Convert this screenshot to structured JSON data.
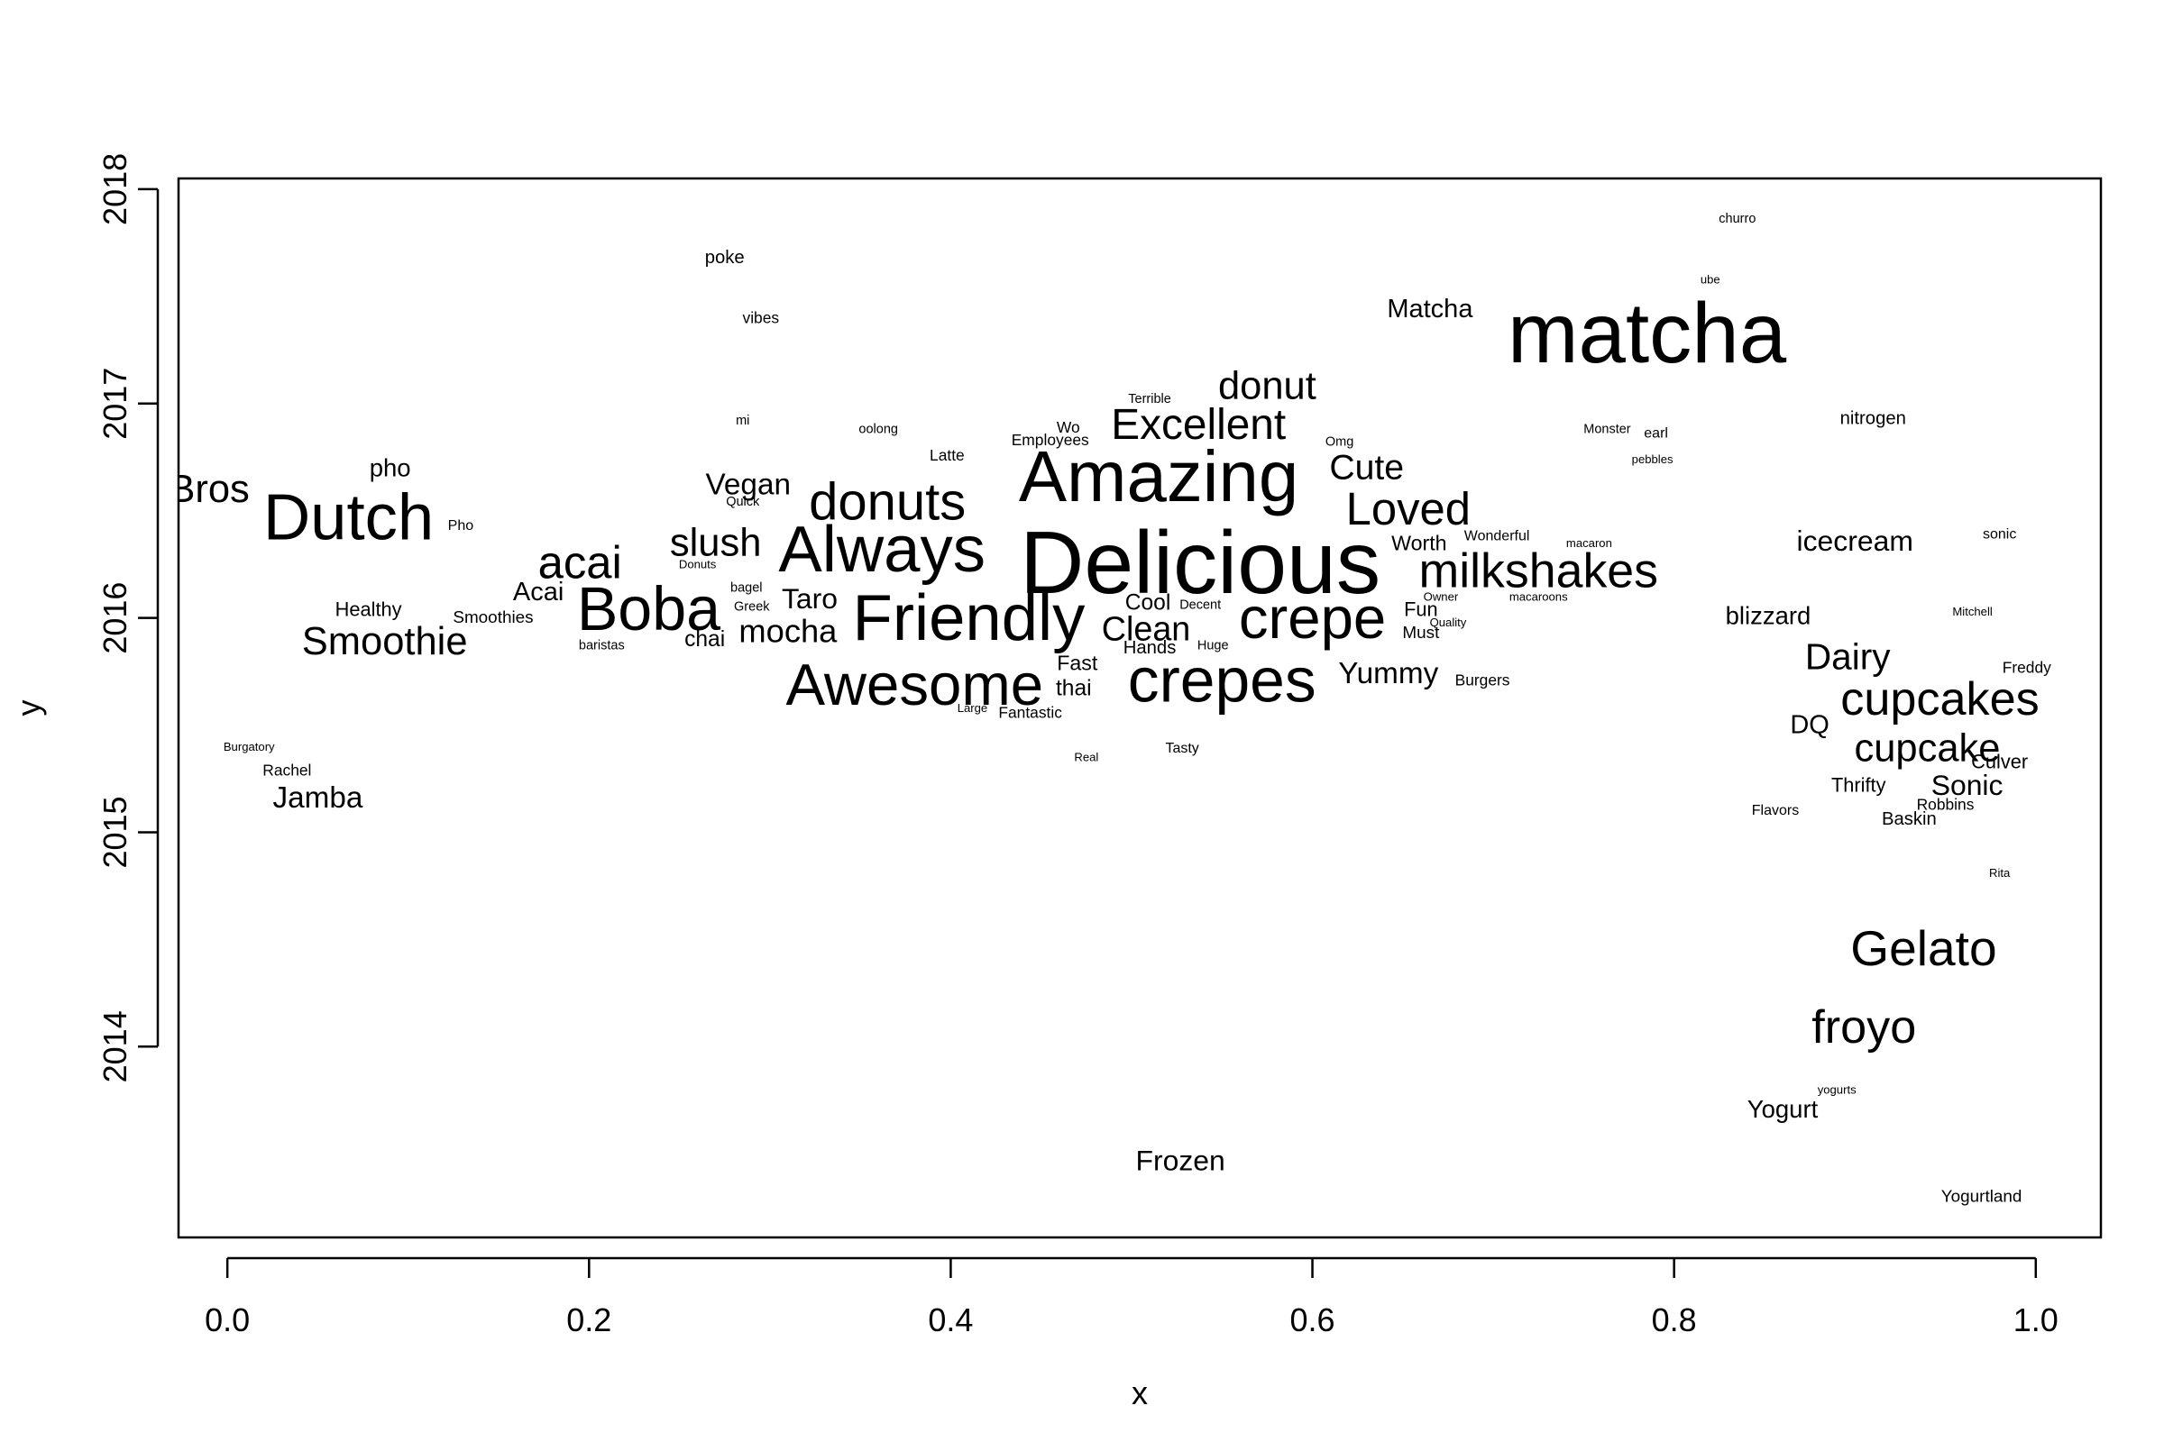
{
  "chart_data": {
    "type": "scatter",
    "title": "",
    "xlabel": "x",
    "ylabel": "y",
    "xlim": [
      -0.027,
      1.036
    ],
    "ylim": [
      2013.11,
      2018.05
    ],
    "x_ticks": [
      0.0,
      0.2,
      0.4,
      0.6,
      0.8,
      1.0
    ],
    "x_tick_labels": [
      "0.0",
      "0.2",
      "0.4",
      "0.6",
      "0.8",
      "1.0"
    ],
    "y_ticks": [
      2014,
      2015,
      2016,
      2017,
      2018
    ],
    "y_tick_labels": [
      "2014",
      "2015",
      "2016",
      "2017",
      "2018"
    ],
    "grid": false,
    "legend": "none",
    "colors": {
      "text": "#000000",
      "axis": "#000000",
      "background": "#ffffff"
    },
    "words": [
      {
        "label": "churro",
        "x": 0.835,
        "y": 2017.86,
        "weight": 1.0
      },
      {
        "label": "poke",
        "x": 0.275,
        "y": 2017.68,
        "weight": 1.4
      },
      {
        "label": "vibes",
        "x": 0.295,
        "y": 2017.4,
        "weight": 1.2
      },
      {
        "label": "ube",
        "x": 0.82,
        "y": 2017.58,
        "weight": 0.9
      },
      {
        "label": "Matcha",
        "x": 0.665,
        "y": 2017.44,
        "weight": 2.0
      },
      {
        "label": "matcha",
        "x": 0.785,
        "y": 2017.33,
        "weight": 6.5
      },
      {
        "label": "donut",
        "x": 0.575,
        "y": 2017.08,
        "weight": 3.0
      },
      {
        "label": "Terrible",
        "x": 0.51,
        "y": 2017.02,
        "weight": 1.0
      },
      {
        "label": "Excellent",
        "x": 0.537,
        "y": 2016.9,
        "weight": 3.3
      },
      {
        "label": "mi",
        "x": 0.285,
        "y": 2016.92,
        "weight": 1.0
      },
      {
        "label": "oolong",
        "x": 0.36,
        "y": 2016.88,
        "weight": 1.0
      },
      {
        "label": "nitrogen",
        "x": 0.91,
        "y": 2016.93,
        "weight": 1.4
      },
      {
        "label": "Monster",
        "x": 0.763,
        "y": 2016.88,
        "weight": 1.0
      },
      {
        "label": "earl",
        "x": 0.79,
        "y": 2016.86,
        "weight": 1.1
      },
      {
        "label": "Wo",
        "x": 0.465,
        "y": 2016.89,
        "weight": 1.2
      },
      {
        "label": "Employees",
        "x": 0.455,
        "y": 2016.83,
        "weight": 1.2
      },
      {
        "label": "Omg",
        "x": 0.615,
        "y": 2016.82,
        "weight": 1.0
      },
      {
        "label": "Latte",
        "x": 0.398,
        "y": 2016.76,
        "weight": 1.2
      },
      {
        "label": "pebbles",
        "x": 0.788,
        "y": 2016.74,
        "weight": 0.9
      },
      {
        "label": "Cute",
        "x": 0.63,
        "y": 2016.7,
        "weight": 2.7
      },
      {
        "label": "Amazing",
        "x": 0.515,
        "y": 2016.66,
        "weight": 5.5
      },
      {
        "label": "pho",
        "x": 0.09,
        "y": 2016.7,
        "weight": 1.9
      },
      {
        "label": "Bros",
        "x": -0.01,
        "y": 2016.6,
        "weight": 3.0
      },
      {
        "label": "Vegan",
        "x": 0.288,
        "y": 2016.62,
        "weight": 2.3
      },
      {
        "label": "Dutch",
        "x": 0.067,
        "y": 2016.47,
        "weight": 5.0
      },
      {
        "label": "donuts",
        "x": 0.365,
        "y": 2016.54,
        "weight": 4.0
      },
      {
        "label": "Quick",
        "x": 0.285,
        "y": 2016.54,
        "weight": 1.0
      },
      {
        "label": "Loved",
        "x": 0.653,
        "y": 2016.51,
        "weight": 3.5
      },
      {
        "label": "Pho",
        "x": 0.129,
        "y": 2016.43,
        "weight": 1.1
      },
      {
        "label": "sonic",
        "x": 0.98,
        "y": 2016.39,
        "weight": 1.1
      },
      {
        "label": "Wonderful",
        "x": 0.702,
        "y": 2016.38,
        "weight": 1.1
      },
      {
        "label": "macaron",
        "x": 0.753,
        "y": 2016.35,
        "weight": 0.9
      },
      {
        "label": "icecream",
        "x": 0.9,
        "y": 2016.36,
        "weight": 2.2
      },
      {
        "label": "Worth",
        "x": 0.659,
        "y": 2016.35,
        "weight": 1.6
      },
      {
        "label": "Always",
        "x": 0.362,
        "y": 2016.32,
        "weight": 5.0
      },
      {
        "label": "slush",
        "x": 0.27,
        "y": 2016.35,
        "weight": 3.0
      },
      {
        "label": "acai",
        "x": 0.195,
        "y": 2016.26,
        "weight": 3.5
      },
      {
        "label": "Delicious",
        "x": 0.538,
        "y": 2016.26,
        "weight": 6.8
      },
      {
        "label": "Donuts",
        "x": 0.26,
        "y": 2016.25,
        "weight": 0.9
      },
      {
        "label": "milkshakes",
        "x": 0.725,
        "y": 2016.22,
        "weight": 3.7
      },
      {
        "label": "bagel",
        "x": 0.287,
        "y": 2016.14,
        "weight": 1.0
      },
      {
        "label": "macaroons",
        "x": 0.725,
        "y": 2016.1,
        "weight": 0.9
      },
      {
        "label": "Owner",
        "x": 0.671,
        "y": 2016.1,
        "weight": 0.9
      },
      {
        "label": "Acai",
        "x": 0.172,
        "y": 2016.12,
        "weight": 2.0
      },
      {
        "label": "Taro",
        "x": 0.322,
        "y": 2016.09,
        "weight": 2.2
      },
      {
        "label": "Boba",
        "x": 0.233,
        "y": 2016.04,
        "weight": 4.7
      },
      {
        "label": "Cool",
        "x": 0.509,
        "y": 2016.07,
        "weight": 1.7
      },
      {
        "label": "Decent",
        "x": 0.538,
        "y": 2016.06,
        "weight": 1.0
      },
      {
        "label": "Greek",
        "x": 0.29,
        "y": 2016.05,
        "weight": 1.0
      },
      {
        "label": "Mitchell",
        "x": 0.965,
        "y": 2016.03,
        "weight": 0.9
      },
      {
        "label": "Friendly",
        "x": 0.41,
        "y": 2016.0,
        "weight": 5.0
      },
      {
        "label": "Fun",
        "x": 0.66,
        "y": 2016.04,
        "weight": 1.5
      },
      {
        "label": "blizzard",
        "x": 0.852,
        "y": 2016.01,
        "weight": 1.9
      },
      {
        "label": "crepe",
        "x": 0.6,
        "y": 2016.0,
        "weight": 4.5
      },
      {
        "label": "Healthy",
        "x": 0.078,
        "y": 2016.04,
        "weight": 1.5
      },
      {
        "label": "Smoothies",
        "x": 0.147,
        "y": 2016.0,
        "weight": 1.3
      },
      {
        "label": "Quality",
        "x": 0.675,
        "y": 2015.98,
        "weight": 0.9
      },
      {
        "label": "mocha",
        "x": 0.31,
        "y": 2015.94,
        "weight": 2.5
      },
      {
        "label": "Clean",
        "x": 0.508,
        "y": 2015.95,
        "weight": 2.6
      },
      {
        "label": "Must",
        "x": 0.66,
        "y": 2015.93,
        "weight": 1.3
      },
      {
        "label": "Smoothie",
        "x": 0.087,
        "y": 2015.89,
        "weight": 3.0
      },
      {
        "label": "chai",
        "x": 0.264,
        "y": 2015.9,
        "weight": 1.7
      },
      {
        "label": "baristas",
        "x": 0.207,
        "y": 2015.87,
        "weight": 1.0
      },
      {
        "label": "Huge",
        "x": 0.545,
        "y": 2015.87,
        "weight": 1.0
      },
      {
        "label": "Hands",
        "x": 0.51,
        "y": 2015.86,
        "weight": 1.4
      },
      {
        "label": "Dairy",
        "x": 0.896,
        "y": 2015.82,
        "weight": 2.8
      },
      {
        "label": "Fast",
        "x": 0.47,
        "y": 2015.79,
        "weight": 1.6
      },
      {
        "label": "Freddy",
        "x": 0.995,
        "y": 2015.77,
        "weight": 1.2
      },
      {
        "label": "Yummy",
        "x": 0.642,
        "y": 2015.74,
        "weight": 2.3
      },
      {
        "label": "crepes",
        "x": 0.55,
        "y": 2015.71,
        "weight": 4.8
      },
      {
        "label": "Awesome",
        "x": 0.38,
        "y": 2015.69,
        "weight": 4.5
      },
      {
        "label": "Burgers",
        "x": 0.694,
        "y": 2015.71,
        "weight": 1.2
      },
      {
        "label": "thai",
        "x": 0.468,
        "y": 2015.67,
        "weight": 1.7
      },
      {
        "label": "cupcakes",
        "x": 0.947,
        "y": 2015.62,
        "weight": 3.6
      },
      {
        "label": "Large",
        "x": 0.412,
        "y": 2015.58,
        "weight": 0.9
      },
      {
        "label": "Fantastic",
        "x": 0.444,
        "y": 2015.56,
        "weight": 1.2
      },
      {
        "label": "DQ",
        "x": 0.875,
        "y": 2015.5,
        "weight": 2.0
      },
      {
        "label": "Burgatory",
        "x": 0.012,
        "y": 2015.4,
        "weight": 0.9
      },
      {
        "label": "Tasty",
        "x": 0.528,
        "y": 2015.39,
        "weight": 1.1
      },
      {
        "label": "cupcake",
        "x": 0.94,
        "y": 2015.39,
        "weight": 3.0
      },
      {
        "label": "Real",
        "x": 0.475,
        "y": 2015.35,
        "weight": 0.9
      },
      {
        "label": "Culver",
        "x": 0.98,
        "y": 2015.33,
        "weight": 1.5
      },
      {
        "label": "Rachel",
        "x": 0.033,
        "y": 2015.29,
        "weight": 1.2
      },
      {
        "label": "Thrifty",
        "x": 0.902,
        "y": 2015.22,
        "weight": 1.5
      },
      {
        "label": "Sonic",
        "x": 0.962,
        "y": 2015.22,
        "weight": 2.2
      },
      {
        "label": "Jamba",
        "x": 0.05,
        "y": 2015.16,
        "weight": 2.3
      },
      {
        "label": "Robbins",
        "x": 0.95,
        "y": 2015.13,
        "weight": 1.2
      },
      {
        "label": "Flavors",
        "x": 0.856,
        "y": 2015.1,
        "weight": 1.1
      },
      {
        "label": "Baskin",
        "x": 0.93,
        "y": 2015.06,
        "weight": 1.4
      },
      {
        "label": "Rita",
        "x": 0.98,
        "y": 2014.81,
        "weight": 0.9
      },
      {
        "label": "Gelato",
        "x": 0.938,
        "y": 2014.46,
        "weight": 3.8
      },
      {
        "label": "froyo",
        "x": 0.905,
        "y": 2014.09,
        "weight": 3.6
      },
      {
        "label": "yogurts",
        "x": 0.89,
        "y": 2013.8,
        "weight": 0.9
      },
      {
        "label": "Yogurt",
        "x": 0.86,
        "y": 2013.71,
        "weight": 1.9
      },
      {
        "label": "Frozen",
        "x": 0.527,
        "y": 2013.47,
        "weight": 2.2
      },
      {
        "label": "Yogurtland",
        "x": 0.97,
        "y": 2013.3,
        "weight": 1.3
      }
    ]
  }
}
